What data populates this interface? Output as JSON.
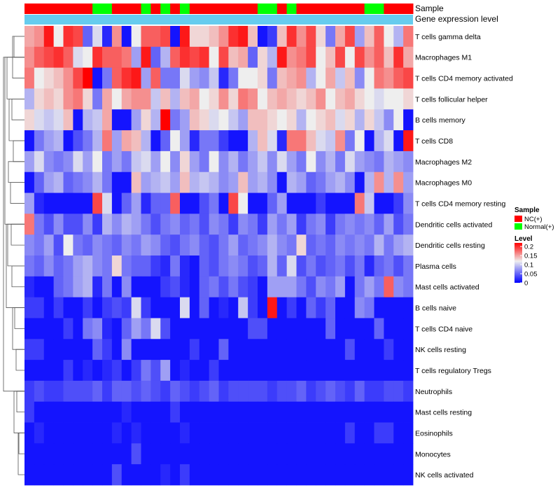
{
  "chart_data": {
    "type": "heatmap",
    "title": "",
    "annotations": {
      "sample_title": "Sample",
      "level_title": "Gene expression level"
    },
    "columns": 40,
    "sample_groups": [
      "NC",
      "NC",
      "NC",
      "NC",
      "NC",
      "NC",
      "NC",
      "Normal",
      "Normal",
      "NC",
      "NC",
      "NC",
      "Normal",
      "NC",
      "Normal",
      "NC",
      "Normal",
      "NC",
      "NC",
      "NC",
      "NC",
      "NC",
      "NC",
      "NC",
      "Normal",
      "Normal",
      "NC",
      "Normal",
      "NC",
      "NC",
      "NC",
      "NC",
      "NC",
      "NC",
      "NC",
      "Normal",
      "Normal",
      "NC",
      "NC",
      "NC"
    ],
    "rows": [
      "T cells gamma delta",
      "Macrophages M1",
      "T cells CD4 memory activated",
      "T cells follicular helper",
      "B cells memory",
      "T cells CD8",
      "Macrophages M2",
      "Macrophages M0",
      "T cells CD4 memory resting",
      "Dendritic cells activated",
      "Dendritic cells resting",
      "Plasma cells",
      "Mast cells activated",
      "B cells naive",
      "T cells CD4 naive",
      "NK cells resting",
      "T cells regulatory  Tregs",
      "Neutrophils",
      "Mast cells resting",
      "Eosinophils",
      "Monocytes",
      "NK cells activated"
    ],
    "values": [
      [
        0.15,
        0.16,
        0.21,
        0.12,
        0.2,
        0.19,
        0.05,
        0.11,
        0.02,
        0.16,
        0.01,
        0.12,
        0.18,
        0.18,
        0.19,
        0.01,
        0.21,
        0.13,
        0.13,
        0.14,
        0.16,
        0.2,
        0.21,
        0.14,
        0.01,
        0.03,
        0.14,
        0.2,
        0.16,
        0.19,
        0.13,
        0.06,
        0.15,
        0.19,
        0.08,
        0.14,
        0.18,
        0.12,
        0.09,
        0.17
      ],
      [
        0.16,
        0.18,
        0.19,
        0.2,
        0.18,
        0.11,
        0.12,
        0.2,
        0.18,
        0.18,
        0.17,
        0.08,
        0.21,
        0.05,
        0.09,
        0.18,
        0.2,
        0.19,
        0.2,
        0.12,
        0.19,
        0.14,
        0.15,
        0.05,
        0.13,
        0.09,
        0.21,
        0.16,
        0.17,
        0.19,
        0.12,
        0.14,
        0.19,
        0.12,
        0.19,
        0.16,
        0.18,
        0.14,
        0.2,
        0.15
      ],
      [
        0.17,
        0.12,
        0.13,
        0.14,
        0.16,
        0.19,
        0.22,
        0.01,
        0.06,
        0.18,
        0.2,
        0.21,
        0.08,
        0.18,
        0.06,
        0.06,
        0.11,
        0.08,
        0.07,
        0.1,
        0.02,
        0.06,
        0.12,
        0.12,
        0.13,
        0.06,
        0.14,
        0.15,
        0.16,
        0.09,
        0.12,
        0.15,
        0.1,
        0.14,
        0.07,
        0.12,
        0.17,
        0.16,
        0.18,
        0.19
      ],
      [
        0.09,
        0.13,
        0.14,
        0.13,
        0.16,
        0.17,
        0.13,
        0.06,
        0.15,
        0.12,
        0.15,
        0.16,
        0.16,
        0.1,
        0.14,
        0.09,
        0.14,
        0.15,
        0.12,
        0.13,
        0.16,
        0.13,
        0.17,
        0.16,
        0.12,
        0.14,
        0.15,
        0.14,
        0.13,
        0.14,
        0.16,
        0.12,
        0.14,
        0.15,
        0.13,
        0.12,
        0.11,
        0.12,
        0.12,
        0.13
      ],
      [
        0.13,
        0.11,
        0.1,
        0.11,
        0.14,
        0.01,
        0.09,
        0.1,
        0.15,
        0.01,
        0.01,
        0.08,
        0.13,
        0.09,
        0.22,
        0.06,
        0.08,
        0.14,
        0.13,
        0.11,
        0.12,
        0.1,
        0.08,
        0.14,
        0.14,
        0.13,
        0.12,
        0.13,
        0.09,
        0.12,
        0.13,
        0.14,
        0.11,
        0.13,
        0.09,
        0.13,
        0.1,
        0.07,
        0.12,
        0.01
      ],
      [
        0.01,
        0.06,
        0.08,
        0.09,
        0.01,
        0.04,
        0.06,
        0.09,
        0.17,
        0.08,
        0.15,
        0.14,
        0.09,
        0.01,
        0.05,
        0.12,
        0.08,
        0.02,
        0.06,
        0.06,
        0.03,
        0.01,
        0.01,
        0.09,
        0.14,
        0.11,
        0.02,
        0.17,
        0.17,
        0.14,
        0.11,
        0.1,
        0.16,
        0.06,
        0.12,
        0.01,
        0.09,
        0.11,
        0.01,
        0.21
      ],
      [
        0.08,
        0.11,
        0.07,
        0.06,
        0.07,
        0.11,
        0.08,
        0.12,
        0.06,
        0.08,
        0.06,
        0.1,
        0.11,
        0.08,
        0.12,
        0.07,
        0.13,
        0.08,
        0.06,
        0.12,
        0.07,
        0.09,
        0.06,
        0.08,
        0.1,
        0.07,
        0.11,
        0.08,
        0.06,
        0.12,
        0.07,
        0.09,
        0.06,
        0.11,
        0.08,
        0.07,
        0.06,
        0.09,
        0.08,
        0.07
      ],
      [
        0.01,
        0.05,
        0.08,
        0.09,
        0.05,
        0.06,
        0.07,
        0.09,
        0.06,
        0.01,
        0.01,
        0.14,
        0.08,
        0.09,
        0.1,
        0.08,
        0.14,
        0.09,
        0.1,
        0.09,
        0.07,
        0.08,
        0.14,
        0.08,
        0.09,
        0.07,
        0.01,
        0.09,
        0.08,
        0.05,
        0.06,
        0.08,
        0.09,
        0.07,
        0.01,
        0.09,
        0.16,
        0.09,
        0.16,
        0.08
      ],
      [
        0.08,
        0.02,
        0.01,
        0.01,
        0.01,
        0.01,
        0.01,
        0.19,
        0.11,
        0.01,
        0.05,
        0.08,
        0.02,
        0.05,
        0.05,
        0.18,
        0.01,
        0.01,
        0.04,
        0.06,
        0.01,
        0.19,
        0.12,
        0.01,
        0.01,
        0.05,
        0.08,
        0.01,
        0.01,
        0.01,
        0.03,
        0.01,
        0.01,
        0.01,
        0.17,
        0.1,
        0.01,
        0.01,
        0.03,
        0.07
      ],
      [
        0.17,
        0.06,
        0.04,
        0.07,
        0.04,
        0.04,
        0.07,
        0.03,
        0.09,
        0.07,
        0.09,
        0.08,
        0.06,
        0.04,
        0.06,
        0.07,
        0.05,
        0.06,
        0.04,
        0.07,
        0.06,
        0.03,
        0.07,
        0.06,
        0.03,
        0.08,
        0.06,
        0.08,
        0.03,
        0.06,
        0.07,
        0.03,
        0.06,
        0.07,
        0.06,
        0.07,
        0.05,
        0.08,
        0.04,
        0.06
      ],
      [
        0.07,
        0.06,
        0.08,
        0.04,
        0.12,
        0.06,
        0.05,
        0.07,
        0.06,
        0.05,
        0.07,
        0.06,
        0.08,
        0.07,
        0.05,
        0.04,
        0.06,
        0.07,
        0.05,
        0.04,
        0.06,
        0.08,
        0.05,
        0.06,
        0.07,
        0.09,
        0.07,
        0.06,
        0.13,
        0.05,
        0.06,
        0.05,
        0.07,
        0.06,
        0.07,
        0.06,
        0.09,
        0.06,
        0.08,
        0.09
      ],
      [
        0.06,
        0.05,
        0.07,
        0.05,
        0.06,
        0.08,
        0.09,
        0.07,
        0.06,
        0.13,
        0.06,
        0.05,
        0.05,
        0.03,
        0.02,
        0.06,
        0.02,
        0.01,
        0.05,
        0.04,
        0.06,
        0.07,
        0.06,
        0.04,
        0.05,
        0.09,
        0.05,
        0.11,
        0.04,
        0.06,
        0.04,
        0.05,
        0.06,
        0.04,
        0.06,
        0.02,
        0.05,
        0.06,
        0.04,
        0.06
      ],
      [
        0.02,
        0.01,
        0.01,
        0.05,
        0.06,
        0.08,
        0.09,
        0.02,
        0.06,
        0.01,
        0.07,
        0.01,
        0.01,
        0.01,
        0.03,
        0.04,
        0.02,
        0.01,
        0.05,
        0.06,
        0.04,
        0.06,
        0.04,
        0.03,
        0.01,
        0.08,
        0.08,
        0.08,
        0.06,
        0.04,
        0.07,
        0.06,
        0.08,
        0.01,
        0.06,
        0.08,
        0.06,
        0.18,
        0.07,
        0.06
      ],
      [
        0.03,
        0.03,
        0.01,
        0.03,
        0.01,
        0.01,
        0.03,
        0.01,
        0.03,
        0.04,
        0.03,
        0.11,
        0.03,
        0.01,
        0.01,
        0.01,
        0.11,
        0.01,
        0.05,
        0.01,
        0.02,
        0.01,
        0.1,
        0.03,
        0.01,
        0.21,
        0.01,
        0.03,
        0.01,
        0.05,
        0.03,
        0.05,
        0.01,
        0.01,
        0.07,
        0.06,
        0.01,
        0.01,
        0.01,
        0.01
      ],
      [
        0.01,
        0.01,
        0.01,
        0.01,
        0.03,
        0.01,
        0.06,
        0.07,
        0.02,
        0.01,
        0.05,
        0.08,
        0.06,
        0.11,
        0.04,
        0.01,
        0.01,
        0.01,
        0.01,
        0.01,
        0.01,
        0.01,
        0.01,
        0.04,
        0.04,
        0.01,
        0.01,
        0.01,
        0.01,
        0.01,
        0.01,
        0.05,
        0.01,
        0.01,
        0.01,
        0.01,
        0.05,
        0.01,
        0.01,
        0.01
      ],
      [
        0.03,
        0.03,
        0.01,
        0.01,
        0.01,
        0.01,
        0.01,
        0.05,
        0.03,
        0.01,
        0.07,
        0.01,
        0.01,
        0.01,
        0.01,
        0.01,
        0.01,
        0.03,
        0.01,
        0.01,
        0.05,
        0.01,
        0.01,
        0.01,
        0.01,
        0.01,
        0.01,
        0.01,
        0.01,
        0.01,
        0.01,
        0.01,
        0.01,
        0.04,
        0.01,
        0.01,
        0.01,
        0.03,
        0.01,
        0.01
      ],
      [
        0.01,
        0.01,
        0.01,
        0.01,
        0.03,
        0.01,
        0.02,
        0.01,
        0.02,
        0.03,
        0.01,
        0.03,
        0.06,
        0.04,
        0.08,
        0.01,
        0.02,
        0.01,
        0.01,
        0.03,
        0.01,
        0.01,
        0.01,
        0.01,
        0.01,
        0.01,
        0.01,
        0.01,
        0.01,
        0.01,
        0.01,
        0.01,
        0.01,
        0.01,
        0.01,
        0.01,
        0.01,
        0.01,
        0.01,
        0.01
      ],
      [
        0.03,
        0.04,
        0.03,
        0.03,
        0.04,
        0.04,
        0.04,
        0.05,
        0.03,
        0.05,
        0.05,
        0.04,
        0.05,
        0.04,
        0.03,
        0.05,
        0.04,
        0.03,
        0.04,
        0.05,
        0.03,
        0.04,
        0.04,
        0.04,
        0.04,
        0.03,
        0.04,
        0.04,
        0.05,
        0.03,
        0.04,
        0.05,
        0.04,
        0.03,
        0.05,
        0.03,
        0.03,
        0.04,
        0.04,
        0.03
      ],
      [
        0.03,
        0.01,
        0.01,
        0.01,
        0.01,
        0.01,
        0.01,
        0.01,
        0.01,
        0.01,
        0.02,
        0.01,
        0.01,
        0.01,
        0.01,
        0.03,
        0.01,
        0.01,
        0.01,
        0.01,
        0.01,
        0.01,
        0.01,
        0.01,
        0.01,
        0.01,
        0.01,
        0.01,
        0.01,
        0.01,
        0.01,
        0.01,
        0.01,
        0.01,
        0.01,
        0.01,
        0.01,
        0.01,
        0.01,
        0.01
      ],
      [
        0.01,
        0.02,
        0.01,
        0.01,
        0.01,
        0.01,
        0.01,
        0.01,
        0.01,
        0.02,
        0.01,
        0.02,
        0.01,
        0.01,
        0.01,
        0.01,
        0.02,
        0.01,
        0.01,
        0.01,
        0.01,
        0.01,
        0.01,
        0.01,
        0.01,
        0.01,
        0.01,
        0.01,
        0.01,
        0.01,
        0.01,
        0.01,
        0.01,
        0.03,
        0.01,
        0.01,
        0.03,
        0.03,
        0.01,
        0.01
      ],
      [
        0.01,
        0.01,
        0.01,
        0.01,
        0.01,
        0.01,
        0.01,
        0.01,
        0.01,
        0.01,
        0.01,
        0.04,
        0.01,
        0.01,
        0.01,
        0.01,
        0.01,
        0.01,
        0.01,
        0.01,
        0.01,
        0.01,
        0.01,
        0.01,
        0.01,
        0.01,
        0.01,
        0.01,
        0.01,
        0.01,
        0.01,
        0.01,
        0.01,
        0.01,
        0.01,
        0.01,
        0.01,
        0.01,
        0.01,
        0.01
      ],
      [
        0.01,
        0.01,
        0.01,
        0.01,
        0.01,
        0.01,
        0.01,
        0.01,
        0.01,
        0.04,
        0.01,
        0.01,
        0.01,
        0.01,
        0.02,
        0.01,
        0.03,
        0.01,
        0.01,
        0.01,
        0.01,
        0.01,
        0.01,
        0.01,
        0.01,
        0.01,
        0.01,
        0.01,
        0.01,
        0.01,
        0.01,
        0.01,
        0.01,
        0.01,
        0.01,
        0.01,
        0.01,
        0.01,
        0.01,
        0.01
      ]
    ],
    "color_scale": {
      "min": 0,
      "mid": 0.12,
      "max": 0.22,
      "low_color": "#0000ff",
      "mid_color": "#eeeeee",
      "high_color": "#ff0000"
    },
    "legend": {
      "sample_title": "Sample",
      "sample_entries": [
        {
          "label": "NC(+)",
          "color": "#ff0000"
        },
        {
          "label": "Normal(+)",
          "color": "#00ff00"
        }
      ],
      "level_title": "Level",
      "level_ticks": [
        {
          "label": "0.2",
          "value": 0.2
        },
        {
          "label": "0.15",
          "value": 0.15
        },
        {
          "label": "0.1",
          "value": 0.1
        },
        {
          "label": "0.05",
          "value": 0.05
        },
        {
          "label": "0",
          "value": 0
        }
      ]
    },
    "group_colors": {
      "NC": "#ff0000",
      "Normal": "#00ff00"
    },
    "level_bar_color": "#66ccee"
  }
}
